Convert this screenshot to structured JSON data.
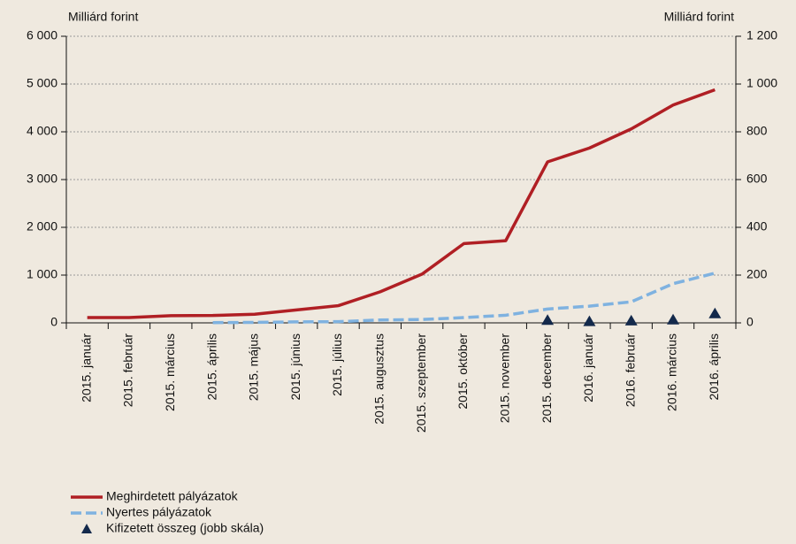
{
  "chart_data": {
    "type": "line",
    "y_label": "Milliárd forint",
    "y2_label": "Milliárd forint",
    "categories": [
      "2015. január",
      "2015. február",
      "2015. március",
      "2015. április",
      "2015. május",
      "2015. június",
      "2015. július",
      "2015. augusztus",
      "2015. szeptember",
      "2015. október",
      "2015. november",
      "2015. december",
      "2016. január",
      "2016. február",
      "2016. március",
      "2016. április"
    ],
    "series": [
      {
        "name": "Meghirdetett pályázatok",
        "color": "#b01f24",
        "style": "solid",
        "values": [
          110,
          110,
          150,
          155,
          180,
          270,
          360,
          650,
          1020,
          1660,
          1720,
          3370,
          3660,
          4060,
          4560,
          4880
        ]
      },
      {
        "name": "Nyertes pályázatok",
        "color": "#7fb2e0",
        "style": "dashed",
        "values": [
          null,
          null,
          null,
          5,
          10,
          20,
          25,
          60,
          70,
          110,
          160,
          290,
          350,
          440,
          820,
          1040
        ]
      },
      {
        "name": "Kifizetett összeg (jobb skála)",
        "color": "#13294b",
        "style": "marker",
        "axis": "y2",
        "values": [
          null,
          null,
          null,
          null,
          null,
          null,
          null,
          null,
          null,
          null,
          null,
          10,
          5,
          8,
          12,
          38
        ]
      }
    ],
    "ylim": [
      0,
      6000
    ],
    "yticks": [
      0,
      {
        "value": 1000,
        "label": "1 000"
      },
      {
        "value": 2000,
        "label": "2 000"
      },
      {
        "value": 3000,
        "label": "3 000"
      },
      {
        "value": 4000,
        "label": "4 000"
      },
      {
        "value": 5000,
        "label": "5 000"
      },
      {
        "value": 6000,
        "label": "6 000"
      }
    ],
    "y2lim": [
      0,
      1200
    ],
    "y2ticks": [
      0,
      200,
      400,
      600,
      800,
      {
        "value": 1000,
        "label": "1 000"
      },
      {
        "value": 1200,
        "label": "1 200"
      }
    ],
    "grid": true
  }
}
